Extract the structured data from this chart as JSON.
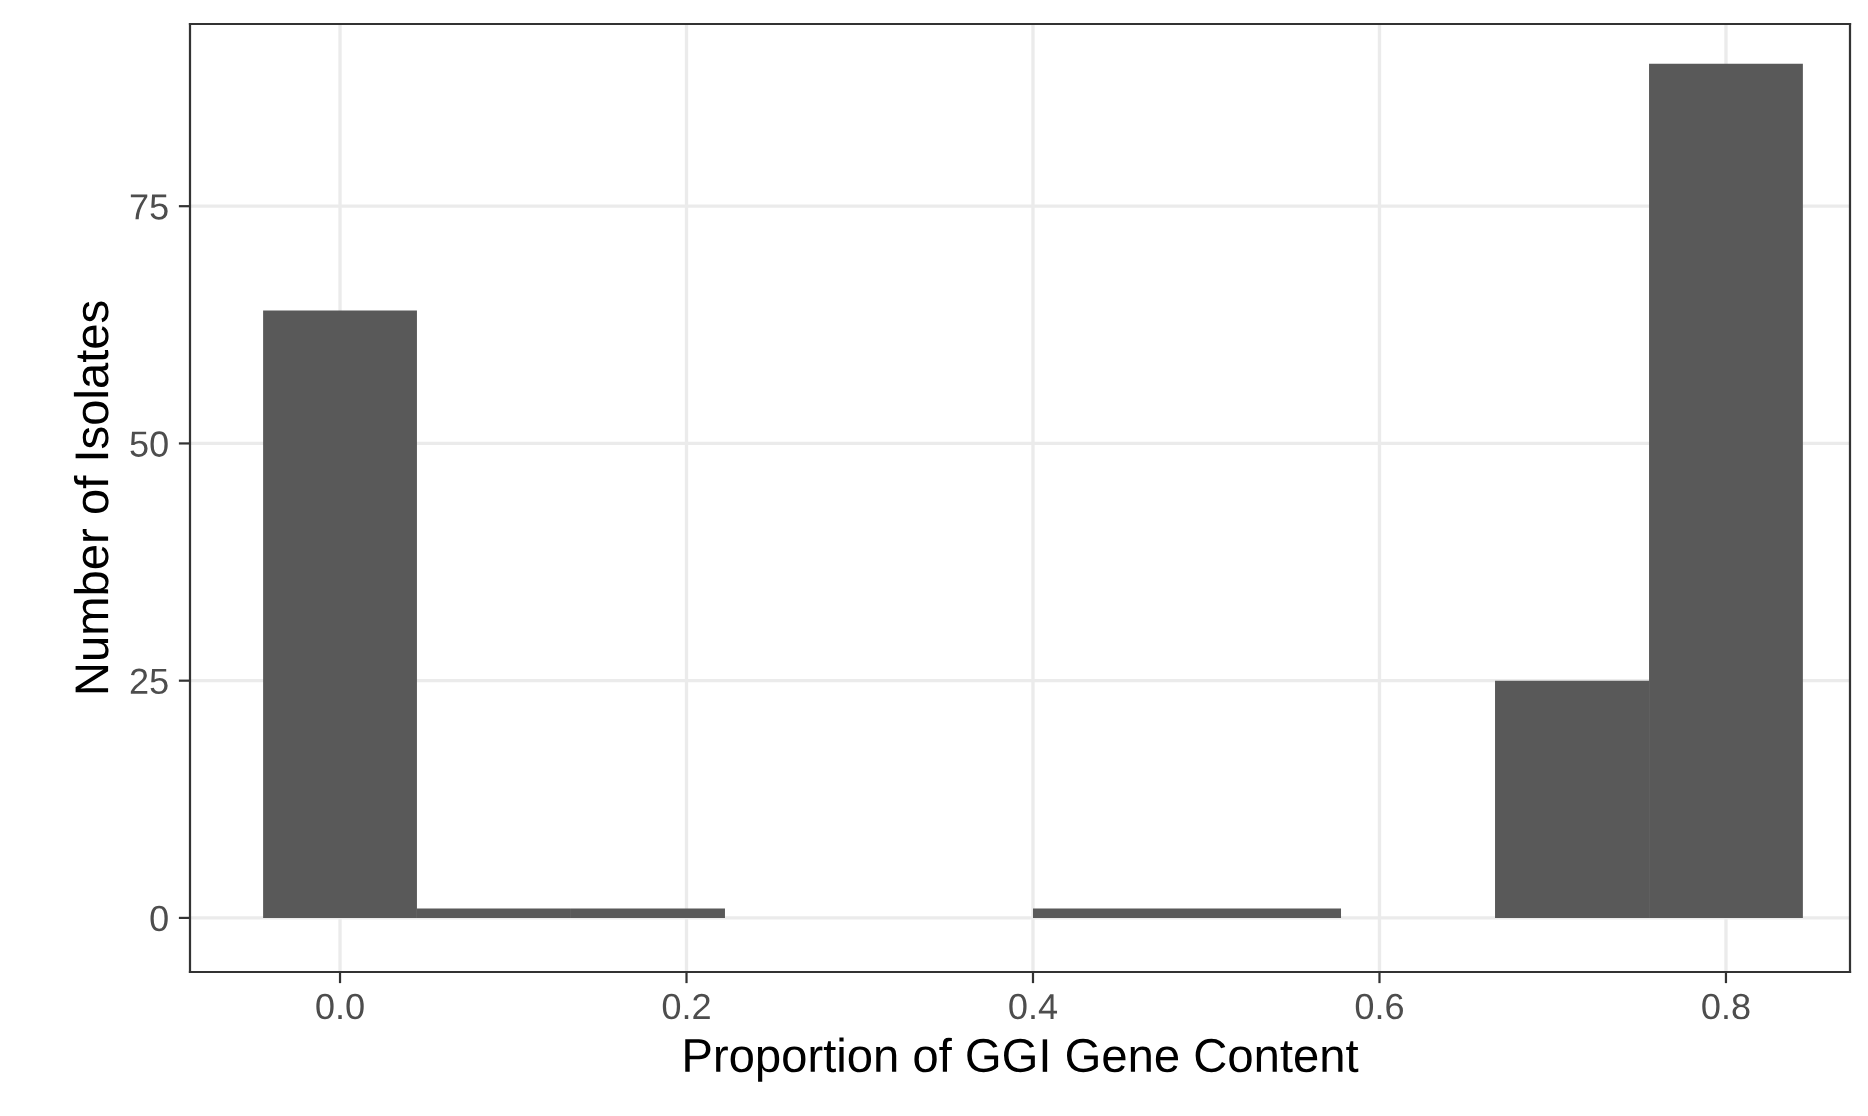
{
  "chart_data": {
    "type": "histogram",
    "xlabel": "Proportion of GGI Gene Content",
    "ylabel": "Number of Isolates",
    "bins": [
      -0.0444,
      0.0444,
      0.1333,
      0.2222,
      0.3111,
      0.4,
      0.4889,
      0.5778,
      0.6667,
      0.7556,
      0.8444
    ],
    "values": [
      64,
      1,
      1,
      0,
      0,
      1,
      1,
      0,
      25,
      90
    ],
    "color": "#595959",
    "xlim": [
      -0.0866,
      0.8716
    ],
    "ylim": [
      -5.7,
      94.2
    ],
    "xticks": [
      {
        "value": 0.0,
        "label": "0.0"
      },
      {
        "value": 0.2,
        "label": "0.2"
      },
      {
        "value": 0.4,
        "label": "0.4"
      },
      {
        "value": 0.6,
        "label": "0.6"
      },
      {
        "value": 0.8,
        "label": "0.8"
      }
    ],
    "yticks": [
      0,
      25,
      50,
      75
    ],
    "grid": true
  }
}
